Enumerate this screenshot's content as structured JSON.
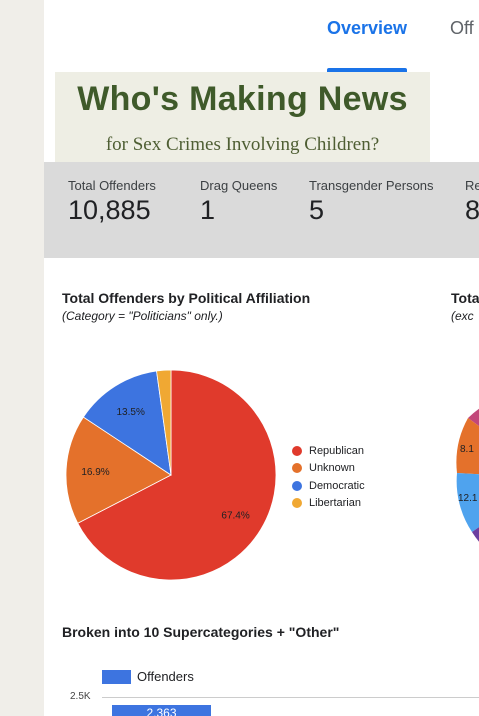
{
  "tabs": [
    {
      "label": "Overview"
    },
    {
      "label": "Off"
    }
  ],
  "banner": {
    "title": "Who's Making News",
    "subtitle": "for Sex Crimes Involving Children?"
  },
  "stats": [
    {
      "label": "Total Offenders",
      "value": "10,885"
    },
    {
      "label": "Drag Queens",
      "value": "1"
    },
    {
      "label": "Transgender Persons",
      "value": "5"
    },
    {
      "label": "Re",
      "value": "8"
    }
  ],
  "pie_card": {
    "title": "Total Offenders by Political Affiliation",
    "note": "(Category = \"Politicians\" only.)"
  },
  "second_card": {
    "title": "Tota",
    "note": "(exc",
    "visible_labels": [
      "8.1",
      "12.1"
    ]
  },
  "bar_card": {
    "title": "Broken into 10 Supercategories + \"Other\"",
    "legend": "Offenders",
    "tick": "2.5K",
    "first_bar_label": "2,363"
  },
  "colors": {
    "accent": "#1a73e8",
    "republican": "#e03a2c",
    "unknown": "#e4712b",
    "democratic": "#3d74e0",
    "libertarian": "#f0a833"
  },
  "chart_data": [
    {
      "type": "pie",
      "title": "Total Offenders by Political Affiliation",
      "subtitle": "(Category = \"Politicians\" only.)",
      "labels": [
        "Republican",
        "Unknown",
        "Democratic",
        "Libertarian"
      ],
      "values": [
        67.4,
        16.9,
        13.5,
        2.2
      ],
      "value_labels": [
        "67.4%",
        "16.9%",
        "13.5%",
        ""
      ],
      "colors": [
        "#e03a2c",
        "#e4712b",
        "#3d74e0",
        "#f0a833"
      ],
      "legend": "right"
    },
    {
      "type": "bar",
      "title": "Broken into 10 Supercategories + \"Other\"",
      "series": [
        {
          "name": "Offenders",
          "values": [
            2363
          ]
        }
      ],
      "ylim": [
        0,
        2500
      ],
      "legend": "top-left"
    }
  ]
}
